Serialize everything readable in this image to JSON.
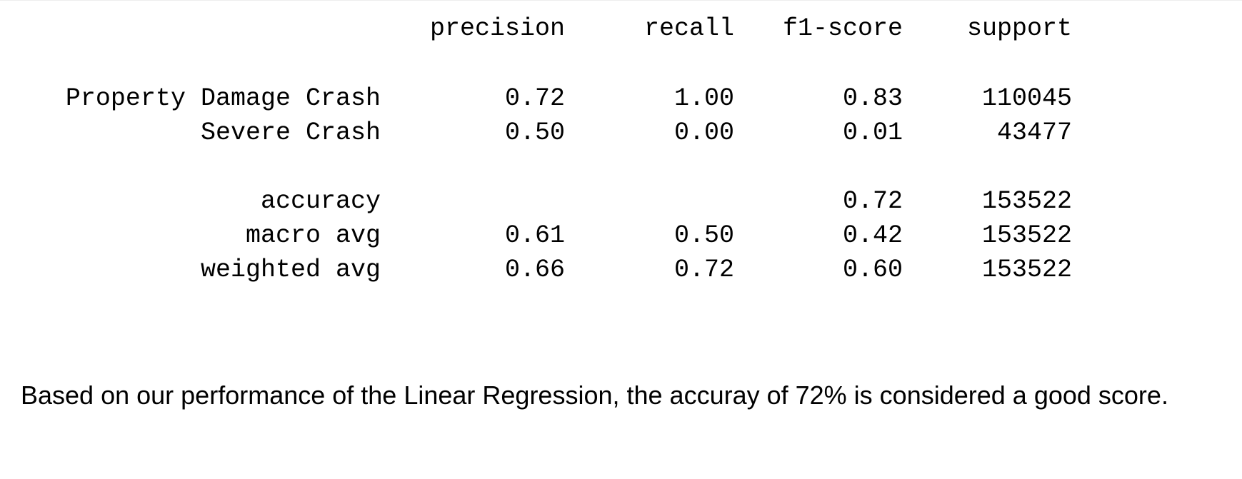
{
  "report": {
    "headers": {
      "precision": "precision",
      "recall": "recall",
      "f1": "f1-score",
      "support": "support"
    },
    "rows": [
      {
        "label": "Property Damage Crash",
        "precision": "0.72",
        "recall": "1.00",
        "f1": "0.83",
        "support": "110045"
      },
      {
        "label": "Severe Crash",
        "precision": "0.50",
        "recall": "0.00",
        "f1": "0.01",
        "support": "43477"
      },
      {
        "label": "accuracy",
        "precision": "",
        "recall": "",
        "f1": "0.72",
        "support": "153522"
      },
      {
        "label": "macro avg",
        "precision": "0.61",
        "recall": "0.50",
        "f1": "0.42",
        "support": "153522"
      },
      {
        "label": "weighted avg",
        "precision": "0.66",
        "recall": "0.72",
        "f1": "0.60",
        "support": "153522"
      }
    ]
  },
  "note": "Based on our performance of the Linear Regression, the accuray of 72% is considered a good score."
}
